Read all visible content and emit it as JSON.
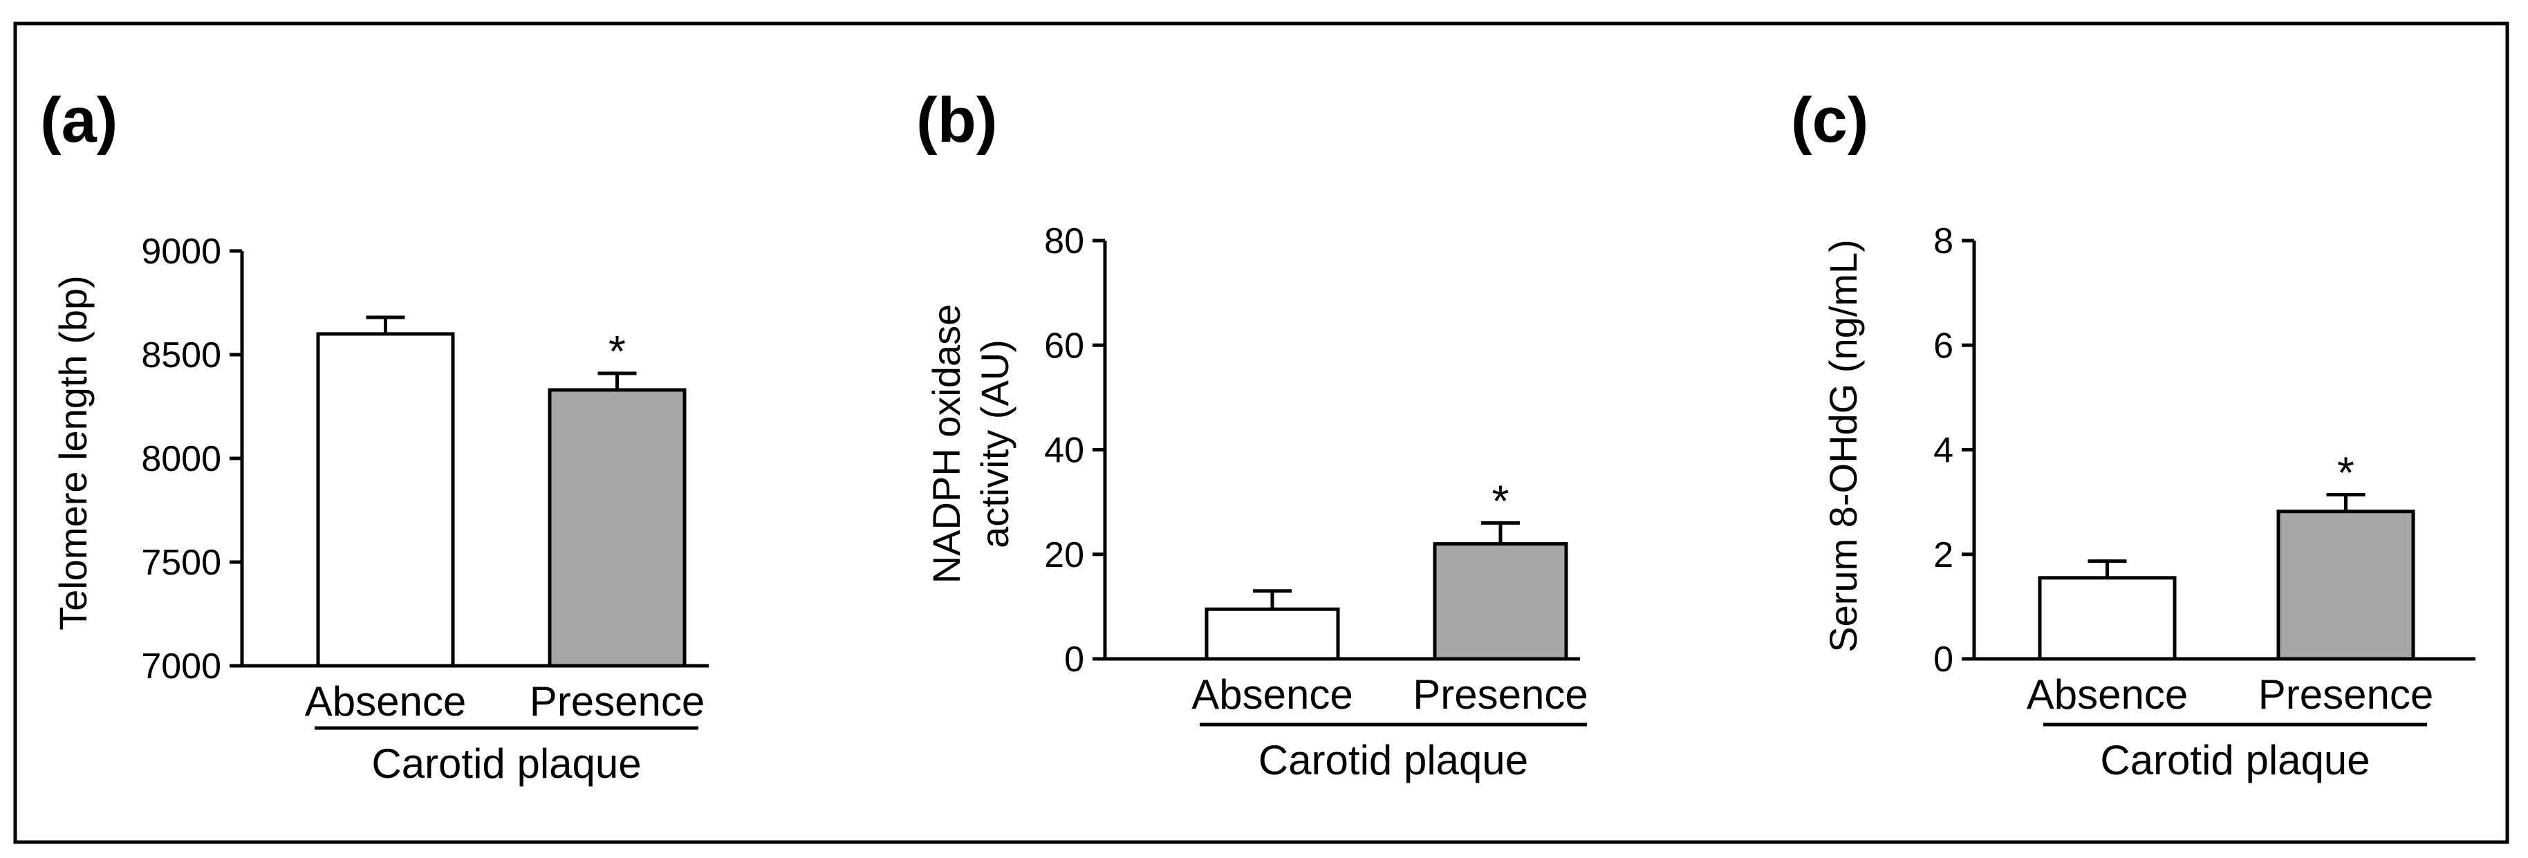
{
  "chart_data": [
    {
      "type": "bar",
      "panel": "(a)",
      "categories": [
        "Absence",
        "Presence"
      ],
      "values": [
        8600,
        8330
      ],
      "errors": [
        80,
        80
      ],
      "significance": [
        "",
        "*"
      ],
      "ylabel": "Telomere length (bp)",
      "ylim": [
        7000,
        9000
      ],
      "yticks": [
        7000,
        7500,
        8000,
        8500,
        9000
      ],
      "yticklabels": [
        "7000",
        "7500",
        "8000",
        "8500",
        "9000"
      ],
      "group_label": "Carotid plaque",
      "bar_colors": [
        "#ffffff",
        "#a6a6a6"
      ]
    },
    {
      "type": "bar",
      "panel": "(b)",
      "categories": [
        "Absence",
        "Presence"
      ],
      "values": [
        9.5,
        22
      ],
      "errors": [
        3.5,
        4
      ],
      "significance": [
        "",
        "*"
      ],
      "ylabel_lines": [
        "NADPH oxidase",
        "activity (AU)"
      ],
      "ylim": [
        0,
        80
      ],
      "yticks": [
        0,
        20,
        40,
        60,
        80
      ],
      "yticklabels": [
        "0",
        "20",
        "40",
        "60",
        "80"
      ],
      "group_label": "Carotid plaque",
      "bar_colors": [
        "#ffffff",
        "#a6a6a6"
      ]
    },
    {
      "type": "bar",
      "panel": "(c)",
      "categories": [
        "Absence",
        "Presence"
      ],
      "values": [
        1.55,
        2.82
      ],
      "errors": [
        0.32,
        0.32
      ],
      "significance": [
        "",
        "*"
      ],
      "ylabel": "Serum 8-OHdG (ng/mL)",
      "ylim": [
        0,
        8
      ],
      "yticks": [
        0,
        2,
        4,
        6,
        8
      ],
      "yticklabels": [
        "0",
        "2",
        "4",
        "6",
        "8"
      ],
      "group_label": "Carotid plaque",
      "bar_colors": [
        "#ffffff",
        "#a6a6a6"
      ]
    }
  ]
}
